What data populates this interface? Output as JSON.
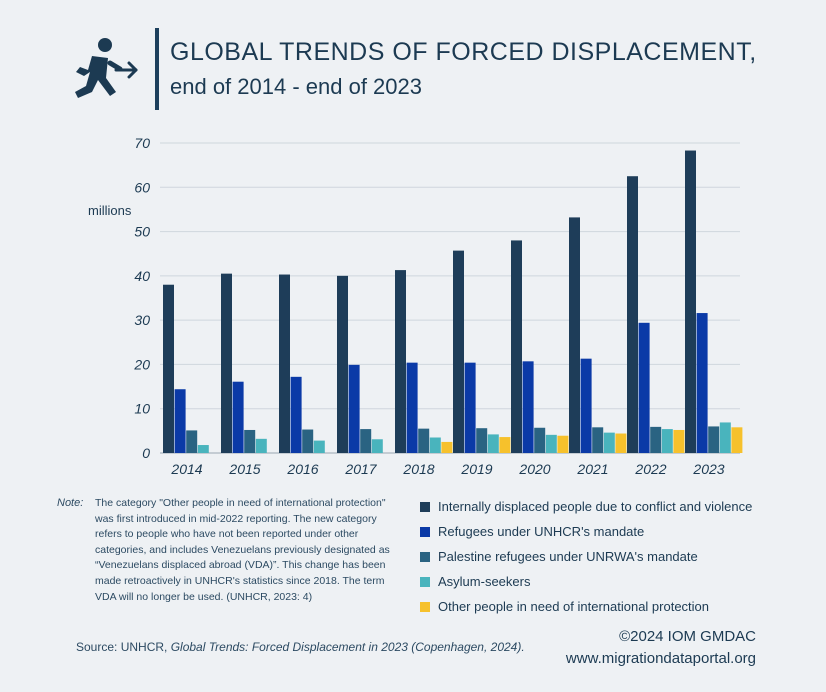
{
  "header": {
    "title": "GLOBAL TRENDS OF FORCED DISPLACEMENT,",
    "subtitle": "end of 2014 - end of 2023",
    "icon": "person-leaving-arrow-icon"
  },
  "chart_data": {
    "type": "bar",
    "ylabel": "millions",
    "ylim": [
      0,
      70
    ],
    "yticks": [
      0,
      10,
      20,
      30,
      40,
      50,
      60,
      70
    ],
    "grid": true,
    "categories": [
      "2014",
      "2015",
      "2016",
      "2017",
      "2018",
      "2019",
      "2020",
      "2021",
      "2022",
      "2023"
    ],
    "series": [
      {
        "name": "Internally displaced people due to conflict and violence",
        "color": "#1e3d59",
        "values": [
          38.0,
          40.5,
          40.3,
          40.0,
          41.3,
          45.7,
          48.0,
          53.2,
          62.5,
          68.3
        ]
      },
      {
        "name": "Refugees under UNHCR's mandate",
        "color": "#0b3aa7",
        "values": [
          14.4,
          16.1,
          17.2,
          19.9,
          20.4,
          20.4,
          20.7,
          21.3,
          29.4,
          31.6
        ]
      },
      {
        "name": "Palestine refugees under UNRWA's mandate",
        "color": "#2a6382",
        "values": [
          5.1,
          5.2,
          5.3,
          5.4,
          5.5,
          5.6,
          5.7,
          5.8,
          5.9,
          6.0
        ]
      },
      {
        "name": "Asylum-seekers",
        "color": "#49b4bd",
        "values": [
          1.8,
          3.2,
          2.8,
          3.1,
          3.5,
          4.2,
          4.1,
          4.6,
          5.4,
          6.9
        ]
      },
      {
        "name": "Other people in need of international protection",
        "color": "#f6c12c",
        "values": [
          null,
          null,
          null,
          null,
          2.5,
          3.6,
          3.9,
          4.4,
          5.2,
          5.8
        ]
      }
    ]
  },
  "note": {
    "label": "Note:",
    "text": "The category \"Other people in need of international protection\" was first introduced in mid-2022 reporting. The new category refers to people who have not been reported under other categories, and includes Venezuelans previously designated as “Venezuelans displaced abroad (VDA)”. This change has been made retroactively in UNHCR's statistics since 2018. The term VDA will no longer be used. (UNHCR, 2023: 4)"
  },
  "source": {
    "prefix": "Source: UNHCR, ",
    "title": "Global Trends: Forced Displacement in 2023 (Copenhagen, 2024)."
  },
  "footer": {
    "copyright": "©2024 IOM GMDAC",
    "website": "www.migrationdataportal.org"
  }
}
